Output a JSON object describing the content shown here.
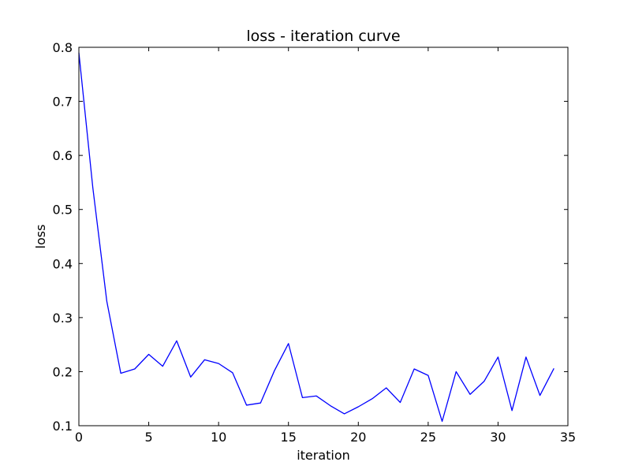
{
  "chart_data": {
    "type": "line",
    "title": "loss - iteration curve",
    "xlabel": "iteration",
    "ylabel": "loss",
    "xlim": [
      0,
      35
    ],
    "ylim": [
      0.1,
      0.8
    ],
    "xticks": [
      0,
      5,
      10,
      15,
      20,
      25,
      30,
      35
    ],
    "yticks": [
      0.1,
      0.2,
      0.3,
      0.4,
      0.5,
      0.6,
      0.7,
      0.8
    ],
    "grid": false,
    "line_color": "#0000ff",
    "series": [
      {
        "x": [
          0,
          1,
          2,
          3,
          4,
          5,
          6,
          7,
          8,
          9,
          10,
          11,
          12,
          13,
          14,
          15,
          16,
          17,
          18,
          19,
          20,
          21,
          22,
          23,
          24,
          25,
          26,
          27,
          28,
          29,
          30,
          31,
          32,
          33,
          34
        ],
        "y": [
          0.79,
          0.54,
          0.33,
          0.197,
          0.205,
          0.232,
          0.21,
          0.257,
          0.19,
          0.222,
          0.215,
          0.198,
          0.138,
          0.142,
          0.202,
          0.252,
          0.152,
          0.155,
          0.137,
          0.122,
          0.135,
          0.15,
          0.17,
          0.143,
          0.205,
          0.193,
          0.108,
          0.2,
          0.158,
          0.182,
          0.227,
          0.128,
          0.227,
          0.156,
          0.206
        ]
      }
    ]
  }
}
